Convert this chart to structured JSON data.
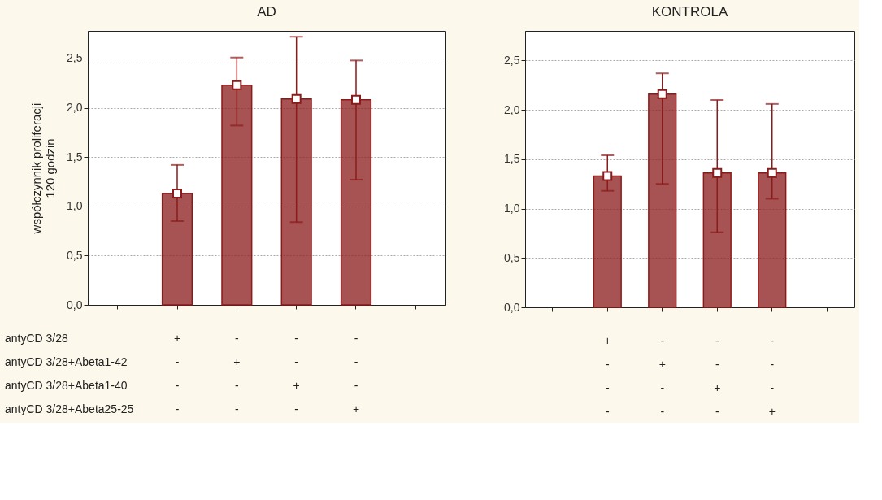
{
  "chart_data": [
    {
      "type": "bar",
      "title": "AD",
      "ylabel": "współczynnik proliferacji\n120 godzin",
      "categories": [
        null,
        "+\n-\n-\n-",
        "-\n+\n-\n-",
        "-\n-\n+\n-",
        "-\n-\n-\n+",
        null
      ],
      "series": [
        {
          "color": "#8b1a1a",
          "values": [
            null,
            1.13,
            2.23,
            2.09,
            2.08,
            null
          ],
          "errors": [
            null,
            [
              0.85,
              1.42
            ],
            [
              1.82,
              2.51
            ],
            [
              0.84,
              2.72
            ],
            [
              1.27,
              2.48
            ],
            null
          ]
        },
        {
          "type": "scatter",
          "color": "#ffffff",
          "marker": "square",
          "values": [
            null,
            1.13,
            2.23,
            2.09,
            2.08,
            null
          ]
        }
      ],
      "grid": "y",
      "ylim": [
        0,
        2.78
      ],
      "yticks": [
        {
          "value": 0,
          "label": "0,0"
        },
        {
          "value": 0.5,
          "label": "0,5"
        },
        {
          "value": 1,
          "label": "1,0"
        },
        {
          "value": 1.5,
          "label": "1,5"
        },
        {
          "value": 2,
          "label": "2,0"
        },
        {
          "value": 2.5,
          "label": "2,5"
        }
      ],
      "annotations": [
        "antyCD 3/28",
        "antyCD 3/28+Abeta1-42",
        "antyCD 3/28+Abeta1-40",
        "antyCD 3/28+Abeta25-25"
      ]
    },
    {
      "type": "bar",
      "title": "KONTROLA",
      "categories": [
        null,
        "+\n-\n-\n-",
        "-\n+\n-\n-",
        "-\n-\n+\n-",
        "-\n-\n-\n+",
        null
      ],
      "series": [
        {
          "color": "#8b1a1a",
          "values": [
            null,
            1.33,
            2.16,
            1.36,
            1.36,
            null
          ],
          "errors": [
            null,
            [
              1.18,
              1.54
            ],
            [
              1.25,
              2.37
            ],
            [
              0.76,
              2.1
            ],
            [
              1.1,
              2.06
            ],
            null
          ]
        },
        {
          "type": "scatter",
          "color": "#ffffff",
          "marker": "square",
          "values": [
            null,
            1.33,
            2.16,
            1.36,
            1.36,
            null
          ]
        }
      ],
      "grid": "y",
      "ylim": [
        0,
        2.8
      ],
      "yticks": [
        {
          "value": 0,
          "label": "0,0"
        },
        {
          "value": 0.5,
          "label": "0,5"
        },
        {
          "value": 1,
          "label": "1,0"
        },
        {
          "value": 1.5,
          "label": "1,5"
        },
        {
          "value": 2,
          "label": "2,0"
        },
        {
          "value": 2.5,
          "label": "2,5"
        }
      ]
    }
  ]
}
